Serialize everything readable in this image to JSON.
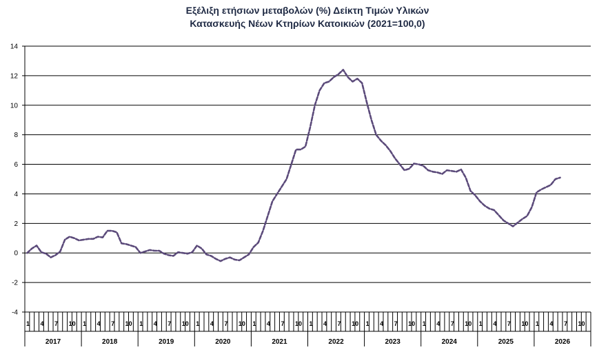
{
  "chart_data": {
    "type": "line",
    "title_line1": "Εξέλιξη ετήσιων μεταβολών (%) Δείκτη Τιμών Υλικών",
    "title_line2": "Κατασκευής Νέων Κτηρίων Κατοικιών (2021=100,0)",
    "xlabel": "",
    "ylabel": "",
    "ylim": [
      -4,
      14
    ],
    "yticks": [
      -4,
      -2,
      0,
      2,
      4,
      6,
      8,
      10,
      12,
      14
    ],
    "grid": true,
    "legend": "none",
    "line_color": "#5b4a7a",
    "line_style": "dashed",
    "years": [
      "2017",
      "2018",
      "2019",
      "2020",
      "2021",
      "2022",
      "2023",
      "2024",
      "2025",
      "2026"
    ],
    "month_labels": [
      "1",
      "4",
      "7",
      "10"
    ],
    "series": [
      {
        "values": [
          0.0,
          0.3,
          0.5,
          0.05,
          -0.05,
          -0.3,
          -0.15,
          0.1,
          0.9,
          1.1,
          1.0,
          0.85,
          0.9,
          0.95,
          0.95,
          1.1,
          1.05,
          1.5,
          1.5,
          1.4,
          0.65,
          0.6,
          0.5,
          0.4,
          0.0,
          0.1,
          0.2,
          0.15,
          0.15,
          -0.05,
          -0.15,
          -0.2,
          0.05,
          0.0,
          -0.05,
          0.05,
          0.5,
          0.3,
          -0.1,
          -0.2,
          -0.4,
          -0.55,
          -0.4,
          -0.3,
          -0.45,
          -0.5,
          -0.3,
          -0.1,
          0.4,
          0.7,
          1.5,
          2.5,
          3.5,
          4.0,
          4.5,
          5.0,
          6.0,
          7.0,
          7.0,
          7.2,
          8.5,
          10.0,
          11.0,
          11.5,
          11.6,
          11.9,
          12.1,
          12.4,
          11.9,
          11.6,
          11.8,
          11.5,
          10.2,
          9.0,
          8.0,
          7.6,
          7.3,
          6.9,
          6.4,
          6.0,
          5.6,
          5.7,
          6.05,
          6.0,
          5.9,
          5.6,
          5.5,
          5.45,
          5.35,
          5.6,
          5.55,
          5.5,
          5.65,
          5.1,
          4.2,
          3.9,
          3.5,
          3.2,
          3.0,
          2.9,
          2.55,
          2.2,
          2.0,
          1.8,
          2.05,
          2.3,
          2.5,
          3.1,
          4.1,
          4.3,
          4.45,
          4.6,
          5.0,
          5.1
        ]
      }
    ]
  }
}
